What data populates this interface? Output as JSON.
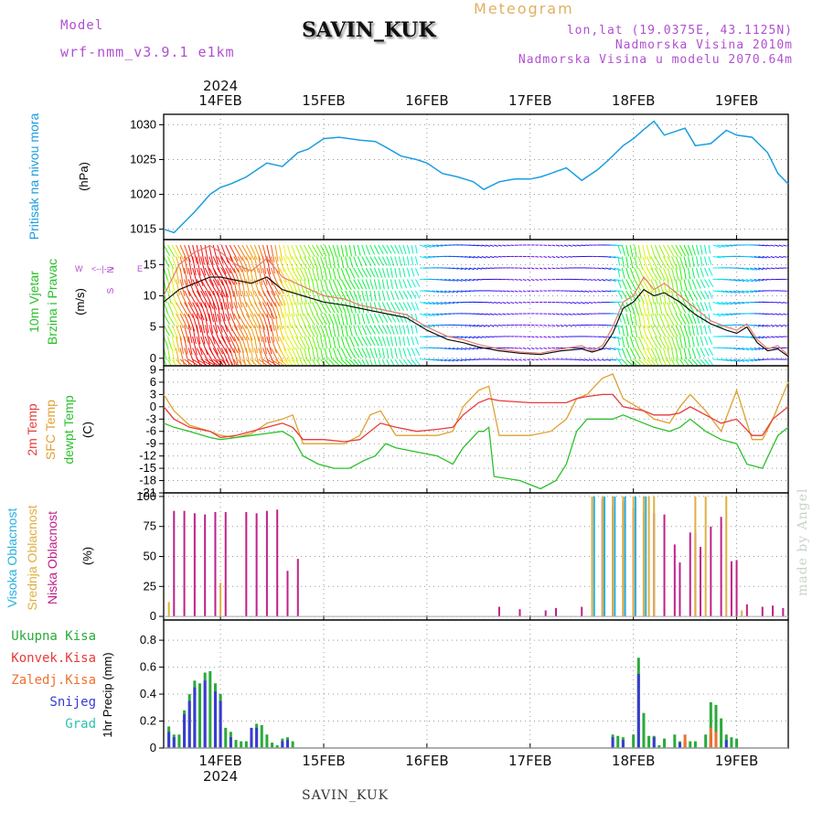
{
  "header": {
    "meteogram_title": "Meteogram",
    "station": "SAVIN_KUK",
    "model_label": "Model",
    "model_name": "wrf-nmm_v3.9.1 e1km",
    "lonlat": "lon,lat (19.0375E, 43.1125N)",
    "altitude": "Nadmorska Visina 2010m",
    "model_altitude": "Nadmorska Visina u modelu 2070.64m"
  },
  "footer": {
    "station": "SAVIN_KUK",
    "credit": "made by Angel"
  },
  "colors": {
    "pressure": "#1a9ee0",
    "temp2m": "#e83a3a",
    "sfc_temp": "#e0a030",
    "dewpoint": "#2bc02b",
    "high_cloud": "#2ab0e0",
    "mid_cloud": "#e0b040",
    "low_cloud": "#c0208a",
    "total_precip": "#2aaa3a",
    "conv_precip": "#e83a3a",
    "freezing_precip": "#f07030",
    "snow": "#3a3ad0",
    "hail": "#30c0b0",
    "wind_speed_line": "#111111",
    "wind_gust_line": "#e87a6a"
  },
  "chart_data": [
    {
      "type": "line",
      "panel": "pressure",
      "ylabel_title": "Pritisak na nivou mora",
      "ylabel_unit": "(hPa)",
      "ylim": [
        1013.5,
        1031.5
      ],
      "yticks": [
        1015,
        1020,
        1025,
        1030
      ],
      "xlim": [
        -0.55,
        5.5
      ],
      "x_dates": [
        "14FEB",
        "15FEB",
        "16FEB",
        "17FEB",
        "18FEB",
        "19FEB"
      ],
      "x_year": "2024",
      "grid": true,
      "series": [
        {
          "key": "pressure",
          "x": [
            -0.55,
            -0.45,
            -0.35,
            -0.25,
            -0.1,
            0.0,
            0.1,
            0.25,
            0.35,
            0.45,
            0.6,
            0.75,
            0.85,
            1.0,
            1.15,
            1.35,
            1.5,
            1.6,
            1.75,
            1.9,
            2.0,
            2.15,
            2.3,
            2.45,
            2.55,
            2.7,
            2.85,
            3.0,
            3.1,
            3.2,
            3.35,
            3.5,
            3.65,
            3.75,
            3.9,
            4.0,
            4.1,
            4.2,
            4.3,
            4.5,
            4.6,
            4.75,
            4.9,
            5.0,
            5.15,
            5.3,
            5.4,
            5.5
          ],
          "y": [
            1015,
            1014.5,
            1016,
            1017.5,
            1020,
            1021,
            1021.5,
            1022.5,
            1023.5,
            1024.5,
            1024,
            1026,
            1026.5,
            1028,
            1028.2,
            1027.8,
            1027.6,
            1026.8,
            1025.5,
            1025,
            1024.5,
            1023,
            1022.5,
            1021.8,
            1020.7,
            1021.8,
            1022.2,
            1022.2,
            1022.5,
            1023,
            1023.8,
            1022,
            1023.5,
            1024.8,
            1027,
            1028,
            1029.3,
            1030.5,
            1028.5,
            1029.5,
            1027,
            1027.3,
            1029.2,
            1028.5,
            1028.2,
            1026,
            1023,
            1021.5
          ]
        }
      ]
    },
    {
      "type": "line",
      "panel": "wind",
      "ylabel_title": "10m Vjetar",
      "ylabel_sub": "Brzina i Pravac",
      "ylabel_unit": "(m/s)",
      "compass": "N",
      "compass_arrows": "<--|-->",
      "compass_e": "E",
      "compass_w": "W",
      "compass_s": "S",
      "ylim": [
        -1.2,
        19
      ],
      "yticks": [
        0,
        5,
        10,
        15
      ],
      "xlim": [
        -0.55,
        5.5
      ],
      "grid": true,
      "series": [
        {
          "key": "wind_gust_line",
          "x": [
            -0.55,
            -0.4,
            -0.25,
            -0.1,
            0.0,
            0.15,
            0.3,
            0.45,
            0.6,
            0.8,
            1.0,
            1.2,
            1.35,
            1.5,
            1.65,
            1.8,
            2.0,
            2.2,
            2.35,
            2.5,
            2.7,
            2.9,
            3.1,
            3.3,
            3.5,
            3.6,
            3.7,
            3.8,
            3.9,
            4.0,
            4.1,
            4.2,
            4.3,
            4.45,
            4.6,
            4.75,
            4.9,
            5.0,
            5.1,
            5.2,
            5.3,
            5.4,
            5.5
          ],
          "y": [
            10,
            15,
            17,
            18,
            17,
            15,
            14,
            16,
            13,
            11.5,
            10,
            9.5,
            8.5,
            8,
            7.5,
            7,
            5,
            3.5,
            3,
            2.2,
            1.5,
            1,
            0.8,
            1.5,
            2,
            1.2,
            2,
            5,
            9,
            10,
            13,
            11,
            12,
            10,
            8,
            6,
            5,
            4.5,
            5.5,
            3,
            1.5,
            2,
            0.5
          ]
        },
        {
          "key": "wind_speed_line",
          "x": [
            -0.55,
            -0.4,
            -0.25,
            -0.1,
            0.0,
            0.15,
            0.3,
            0.45,
            0.6,
            0.8,
            1.0,
            1.2,
            1.35,
            1.5,
            1.65,
            1.8,
            2.0,
            2.2,
            2.35,
            2.5,
            2.7,
            2.9,
            3.1,
            3.3,
            3.5,
            3.6,
            3.7,
            3.8,
            3.9,
            4.0,
            4.1,
            4.2,
            4.3,
            4.45,
            4.6,
            4.75,
            4.9,
            5.0,
            5.1,
            5.2,
            5.3,
            5.4,
            5.5
          ],
          "y": [
            9,
            11,
            12,
            13,
            13,
            12.5,
            12,
            13,
            11,
            10,
            9,
            8.5,
            8,
            7.5,
            7,
            6.5,
            4.5,
            3,
            2.5,
            1.8,
            1.2,
            0.8,
            0.6,
            1.2,
            1.5,
            1,
            1.5,
            4,
            8,
            9,
            11,
            10,
            10.5,
            9,
            7,
            5.5,
            4.5,
            4,
            5,
            2.5,
            1.2,
            1.5,
            0.3
          ]
        }
      ],
      "barbs_note": "colored wind arrows, color by speed"
    },
    {
      "type": "line",
      "panel": "temperature",
      "ylabel_lines": [
        "2m Temp",
        "SFC Temp",
        "dewpt Temp"
      ],
      "ylabel_unit": "(C)",
      "ylim": [
        -21,
        10
      ],
      "yticks": [
        9,
        6,
        3,
        0,
        -3,
        -6,
        -9,
        -12,
        -15,
        -18,
        -21
      ],
      "xlim": [
        -0.55,
        5.5
      ],
      "grid": true,
      "series": [
        {
          "key": "sfc_temp",
          "x": [
            -0.55,
            -0.45,
            -0.3,
            -0.1,
            0.0,
            0.15,
            0.3,
            0.45,
            0.6,
            0.7,
            0.8,
            1.0,
            1.2,
            1.35,
            1.45,
            1.55,
            1.7,
            1.9,
            2.1,
            2.25,
            2.35,
            2.5,
            2.6,
            2.7,
            3.0,
            3.2,
            3.35,
            3.45,
            3.55,
            3.7,
            3.8,
            3.9,
            4.1,
            4.2,
            4.35,
            4.45,
            4.55,
            4.7,
            4.85,
            5.0,
            5.15,
            5.25,
            5.35,
            5.5
          ],
          "y": [
            3,
            -1,
            -4.5,
            -6,
            -7,
            -7.5,
            -6.5,
            -4,
            -3,
            -2,
            -9,
            -9,
            -9,
            -7,
            -2,
            -1,
            -7,
            -7,
            -7,
            -6,
            0,
            4,
            5,
            -7,
            -7,
            -6,
            -3,
            2,
            3,
            7,
            8,
            2,
            -1,
            -3,
            -4,
            0,
            3,
            -1,
            -6,
            4,
            -8,
            -8,
            -3,
            6
          ]
        },
        {
          "key": "temp2m",
          "x": [
            -0.55,
            -0.45,
            -0.3,
            -0.1,
            0.0,
            0.15,
            0.3,
            0.45,
            0.6,
            0.7,
            0.8,
            1.0,
            1.2,
            1.35,
            1.45,
            1.55,
            1.7,
            1.9,
            2.1,
            2.25,
            2.35,
            2.5,
            2.6,
            2.7,
            3.0,
            3.2,
            3.35,
            3.45,
            3.55,
            3.7,
            3.8,
            3.9,
            4.1,
            4.2,
            4.35,
            4.45,
            4.55,
            4.7,
            4.85,
            5.0,
            5.15,
            5.25,
            5.35,
            5.5
          ],
          "y": [
            0,
            -3,
            -5,
            -6,
            -7.5,
            -7,
            -6,
            -5,
            -4,
            -5,
            -8,
            -8,
            -8.5,
            -8,
            -6,
            -4,
            -5,
            -6,
            -5.5,
            -5,
            -2,
            1,
            2,
            1.5,
            1,
            1,
            1,
            2,
            2.5,
            3,
            3,
            0,
            -1,
            -2,
            -2,
            -1.5,
            0,
            -2,
            -4,
            -3,
            -7,
            -7,
            -3,
            0
          ]
        },
        {
          "key": "dewpoint",
          "x": [
            -0.55,
            -0.45,
            -0.3,
            -0.1,
            0.0,
            0.15,
            0.3,
            0.45,
            0.6,
            0.7,
            0.8,
            0.95,
            1.1,
            1.25,
            1.4,
            1.5,
            1.6,
            1.7,
            1.9,
            2.1,
            2.25,
            2.35,
            2.5,
            2.55,
            2.6,
            2.65,
            2.9,
            3.1,
            3.25,
            3.35,
            3.45,
            3.55,
            3.7,
            3.8,
            3.9,
            4.1,
            4.2,
            4.35,
            4.45,
            4.55,
            4.7,
            4.85,
            5.0,
            5.1,
            5.25,
            5.4,
            5.5
          ],
          "y": [
            -4,
            -5,
            -6,
            -7.5,
            -8,
            -7.5,
            -7,
            -6.5,
            -6,
            -7.5,
            -12,
            -14,
            -15,
            -15,
            -13,
            -12,
            -9,
            -10,
            -11,
            -12,
            -14,
            -10,
            -6,
            -6,
            -5,
            -17,
            -18,
            -20,
            -18,
            -14,
            -6,
            -3,
            -3,
            -3,
            -2,
            -4,
            -5,
            -6,
            -5,
            -3,
            -6,
            -8,
            -9,
            -14,
            -15,
            -7,
            -5
          ]
        }
      ]
    },
    {
      "type": "bar",
      "panel": "clouds",
      "ylabel_lines": [
        "Visoka Oblacnost",
        "Srednja Oblacnost",
        "Niska Oblacnost"
      ],
      "ylabel_unit": "(%)",
      "ylim": [
        -3,
        103
      ],
      "yticks": [
        0,
        25,
        50,
        75,
        100
      ],
      "xlim": [
        -0.55,
        5.5
      ],
      "grid": true,
      "series": [
        {
          "key": "low_cloud",
          "x": [
            -0.45,
            -0.35,
            -0.25,
            -0.15,
            -0.05,
            0.05,
            0.25,
            0.35,
            0.45,
            0.55,
            0.65,
            0.75,
            2.7,
            2.9,
            3.15,
            3.25,
            3.5,
            3.6,
            3.7,
            3.8,
            3.9,
            4.0,
            4.1,
            4.2,
            4.3,
            4.4,
            4.45,
            4.55,
            4.6,
            4.65,
            4.75,
            4.85,
            4.95,
            5.0,
            5.1,
            5.25,
            5.35,
            5.45
          ],
          "y": [
            88,
            88,
            86,
            85,
            87,
            87,
            87,
            86,
            88,
            89,
            38,
            48,
            8,
            6,
            5,
            7,
            8,
            99,
            98,
            92,
            96,
            90,
            88,
            86,
            85,
            60,
            45,
            70,
            70,
            58,
            75,
            83,
            46,
            47,
            10,
            8,
            9,
            7
          ]
        },
        {
          "key": "mid_cloud",
          "x": [
            -0.5,
            0.0,
            3.6,
            3.7,
            3.8,
            3.9,
            4.0,
            4.1,
            4.15,
            4.2,
            4.6,
            4.7,
            4.9,
            5.05
          ],
          "y": [
            12,
            28,
            100,
            100,
            100,
            100,
            100,
            100,
            100,
            100,
            100,
            100,
            100,
            5
          ]
        },
        {
          "key": "high_cloud",
          "x": [
            3.62,
            3.72,
            3.82,
            3.92,
            4.02,
            4.12
          ],
          "y": [
            100,
            100,
            100,
            100,
            100,
            100
          ]
        }
      ]
    },
    {
      "type": "bar",
      "panel": "precip",
      "legend": [
        "Ukupna Kisa",
        "Konvek.Kisa",
        "Zaledj.Kisa",
        "Snijeg",
        "Grad"
      ],
      "ylabel": "1hr Precip (mm)",
      "ylim": [
        0,
        0.95
      ],
      "yticks": [
        0,
        0.2,
        0.4,
        0.6,
        0.8
      ],
      "xlim": [
        -0.55,
        5.5
      ],
      "grid": true,
      "series": [
        {
          "key": "total_precip",
          "x": [
            -0.5,
            -0.45,
            -0.4,
            -0.35,
            -0.3,
            -0.25,
            -0.2,
            -0.15,
            -0.1,
            -0.05,
            0.0,
            0.05,
            0.1,
            0.15,
            0.2,
            0.25,
            0.3,
            0.35,
            0.4,
            0.45,
            0.5,
            0.55,
            0.6,
            0.65,
            0.7,
            3.8,
            3.85,
            3.9,
            4.0,
            4.05,
            4.1,
            4.15,
            4.2,
            4.25,
            4.3,
            4.4,
            4.45,
            4.5,
            4.55,
            4.6,
            4.7,
            4.75,
            4.8,
            4.85,
            4.9,
            4.95,
            5.0
          ],
          "y": [
            0.16,
            0.1,
            0.1,
            0.28,
            0.4,
            0.5,
            0.48,
            0.56,
            0.57,
            0.48,
            0.4,
            0.15,
            0.12,
            0.06,
            0.05,
            0.05,
            0.08,
            0.18,
            0.17,
            0.1,
            0.04,
            0.02,
            0.07,
            0.08,
            0.05,
            0.1,
            0.09,
            0.08,
            0.1,
            0.67,
            0.26,
            0.09,
            0.09,
            0.02,
            0.07,
            0.1,
            0.05,
            0.05,
            0.05,
            0.05,
            0.1,
            0.34,
            0.32,
            0.22,
            0.1,
            0.08,
            0.07
          ]
        },
        {
          "key": "snow",
          "x": [
            -0.5,
            -0.45,
            -0.35,
            -0.3,
            -0.25,
            -0.15,
            -0.05,
            0.0,
            0.1,
            0.3,
            0.35,
            0.6,
            0.65,
            3.8,
            3.9,
            4.05,
            4.2,
            4.45,
            4.75,
            4.9
          ],
          "y": [
            0.12,
            0.08,
            0.25,
            0.35,
            0.45,
            0.5,
            0.42,
            0.35,
            0.08,
            0.15,
            0.15,
            0.05,
            0.06,
            0.08,
            0.06,
            0.55,
            0.08,
            0.04,
            0.1,
            0.06
          ]
        },
        {
          "key": "freezing_precip",
          "x": [
            4.5,
            4.75,
            4.8
          ],
          "y": [
            0.1,
            0.15,
            0.12
          ]
        }
      ]
    }
  ]
}
